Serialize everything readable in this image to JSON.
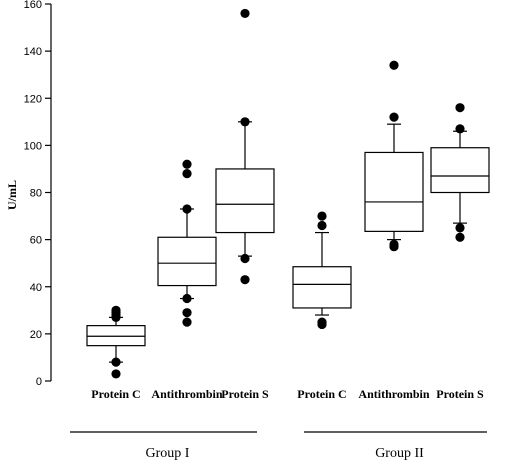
{
  "chart_data": {
    "type": "boxplot",
    "ylabel": "U/mL",
    "ylim": [
      0,
      160
    ],
    "yticks": [
      0,
      20,
      40,
      60,
      80,
      100,
      120,
      140,
      160
    ],
    "grid": false,
    "categories": [
      "Protein C",
      "Antithrombin",
      "Protein S",
      "Protein C",
      "Antithrombin",
      "Protein S"
    ],
    "groups": [
      {
        "label": "Group I",
        "category_indices": [
          0,
          1,
          2
        ]
      },
      {
        "label": "Group II",
        "category_indices": [
          3,
          4,
          5
        ]
      }
    ],
    "boxes": [
      {
        "q1": 15,
        "median": 19,
        "q3": 23.5,
        "whisker_low": 8,
        "whisker_high": 27,
        "outliers": [
          3,
          8,
          27,
          28,
          29,
          30
        ]
      },
      {
        "q1": 40.5,
        "median": 50,
        "q3": 61,
        "whisker_low": 35,
        "whisker_high": 73,
        "outliers": [
          25,
          29,
          35,
          73,
          88,
          92
        ]
      },
      {
        "q1": 63,
        "median": 75,
        "q3": 90,
        "whisker_low": 53,
        "whisker_high": 110,
        "outliers": [
          43,
          52,
          110,
          156
        ]
      },
      {
        "q1": 31,
        "median": 41,
        "q3": 48.5,
        "whisker_low": 28,
        "whisker_high": 63,
        "outliers": [
          24,
          25,
          66,
          70
        ]
      },
      {
        "q1": 63.5,
        "median": 76,
        "q3": 97,
        "whisker_low": 60,
        "whisker_high": 109,
        "outliers": [
          57,
          58,
          112,
          134
        ]
      },
      {
        "q1": 80,
        "median": 87,
        "q3": 99,
        "whisker_low": 67,
        "whisker_high": 106,
        "outliers": [
          61,
          65,
          107,
          116
        ]
      }
    ]
  }
}
